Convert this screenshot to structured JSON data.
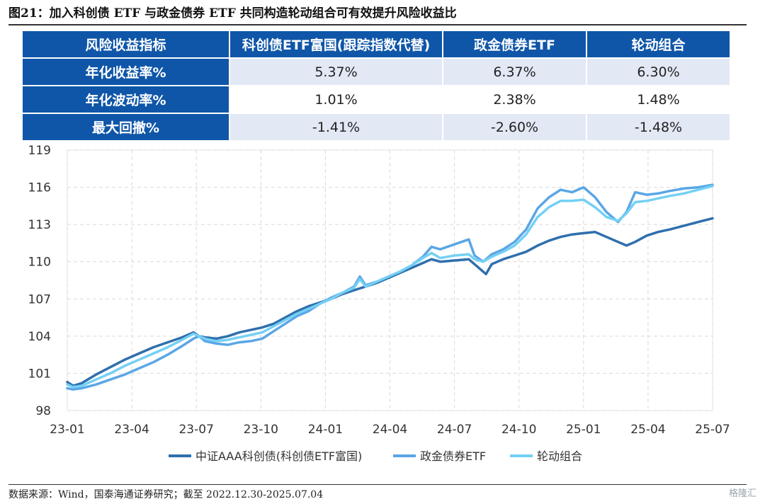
{
  "figure_title": "图21：加入科创债 ETF 与政金债券 ETF 共同构造轮动组合可有效提升风险收益比",
  "table": {
    "headers": [
      "风险收益指标",
      "科创债ETF富国(跟踪指数代替)",
      "政金债券ETF",
      "轮动组合"
    ],
    "rows": [
      {
        "label": "年化收益率%",
        "values": [
          "5.37%",
          "6.37%",
          "6.30%"
        ]
      },
      {
        "label": "年化波动率%",
        "values": [
          "1.01%",
          "2.38%",
          "1.48%"
        ]
      },
      {
        "label": "最大回撤%",
        "values": [
          "-1.41%",
          "-2.60%",
          "-1.48%"
        ]
      }
    ]
  },
  "chart_data": {
    "type": "line",
    "ylim": [
      98,
      119
    ],
    "yticks": [
      98,
      101,
      104,
      107,
      110,
      113,
      116,
      119
    ],
    "xticks": [
      "23-01",
      "23-04",
      "23-07",
      "23-10",
      "24-01",
      "24-04",
      "24-07",
      "24-10",
      "25-01",
      "25-04",
      "25-07"
    ],
    "grid": true,
    "legend_position": "bottom",
    "series": [
      {
        "name": "中证AAA科创债(科创债ETF富国)",
        "color": "#2e6fad",
        "points": [
          [
            0,
            100.3
          ],
          [
            0.2,
            100.0
          ],
          [
            0.5,
            100.2
          ],
          [
            1.0,
            100.9
          ],
          [
            1.5,
            101.5
          ],
          [
            2.0,
            102.1
          ],
          [
            2.5,
            102.6
          ],
          [
            3.0,
            103.1
          ],
          [
            3.5,
            103.5
          ],
          [
            4.0,
            103.9
          ],
          [
            4.4,
            104.3
          ],
          [
            4.6,
            104.0
          ],
          [
            4.8,
            103.9
          ],
          [
            5.2,
            103.8
          ],
          [
            5.6,
            104.0
          ],
          [
            6.0,
            104.3
          ],
          [
            6.4,
            104.5
          ],
          [
            6.8,
            104.7
          ],
          [
            7.2,
            105.0
          ],
          [
            7.6,
            105.5
          ],
          [
            8.0,
            106.0
          ],
          [
            8.4,
            106.4
          ],
          [
            8.8,
            106.7
          ],
          [
            9.2,
            107.0
          ],
          [
            9.6,
            107.4
          ],
          [
            10.0,
            107.7
          ],
          [
            10.4,
            108.0
          ],
          [
            10.8,
            108.3
          ],
          [
            11.2,
            108.7
          ],
          [
            11.6,
            109.1
          ],
          [
            12.0,
            109.5
          ],
          [
            12.4,
            109.9
          ],
          [
            12.7,
            110.2
          ],
          [
            13.0,
            110.0
          ],
          [
            13.5,
            110.1
          ],
          [
            14.0,
            110.2
          ],
          [
            14.4,
            109.4
          ],
          [
            14.6,
            109.0
          ],
          [
            14.8,
            109.8
          ],
          [
            15.2,
            110.2
          ],
          [
            15.6,
            110.5
          ],
          [
            16.0,
            110.8
          ],
          [
            16.4,
            111.3
          ],
          [
            16.8,
            111.7
          ],
          [
            17.2,
            112.0
          ],
          [
            17.6,
            112.2
          ],
          [
            18.0,
            112.3
          ],
          [
            18.4,
            112.4
          ],
          [
            18.8,
            112.0
          ],
          [
            19.2,
            111.6
          ],
          [
            19.5,
            111.3
          ],
          [
            19.8,
            111.6
          ],
          [
            20.2,
            112.1
          ],
          [
            20.6,
            112.4
          ],
          [
            21.0,
            112.6
          ],
          [
            21.5,
            112.9
          ],
          [
            22.0,
            113.2
          ],
          [
            22.5,
            113.5
          ]
        ]
      },
      {
        "name": "政金债券ETF",
        "color": "#5aa6e6",
        "points": [
          [
            0,
            99.8
          ],
          [
            0.2,
            99.7
          ],
          [
            0.5,
            99.8
          ],
          [
            1.0,
            100.1
          ],
          [
            1.5,
            100.5
          ],
          [
            2.0,
            100.9
          ],
          [
            2.5,
            101.4
          ],
          [
            3.0,
            101.9
          ],
          [
            3.5,
            102.5
          ],
          [
            4.0,
            103.2
          ],
          [
            4.4,
            103.8
          ],
          [
            4.6,
            104.0
          ],
          [
            4.8,
            103.6
          ],
          [
            5.2,
            103.4
          ],
          [
            5.6,
            103.3
          ],
          [
            6.0,
            103.5
          ],
          [
            6.4,
            103.6
          ],
          [
            6.8,
            103.8
          ],
          [
            7.2,
            104.4
          ],
          [
            7.6,
            105.0
          ],
          [
            8.0,
            105.6
          ],
          [
            8.4,
            106.0
          ],
          [
            8.8,
            106.6
          ],
          [
            9.2,
            107.1
          ],
          [
            9.6,
            107.5
          ],
          [
            10.0,
            108.0
          ],
          [
            10.2,
            108.8
          ],
          [
            10.4,
            108.1
          ],
          [
            10.8,
            108.4
          ],
          [
            11.2,
            108.8
          ],
          [
            11.6,
            109.2
          ],
          [
            12.0,
            109.7
          ],
          [
            12.4,
            110.4
          ],
          [
            12.7,
            111.2
          ],
          [
            13.0,
            111.0
          ],
          [
            13.5,
            111.4
          ],
          [
            14.0,
            111.8
          ],
          [
            14.2,
            110.5
          ],
          [
            14.5,
            110.0
          ],
          [
            14.8,
            110.6
          ],
          [
            15.2,
            111.0
          ],
          [
            15.6,
            111.6
          ],
          [
            16.0,
            112.6
          ],
          [
            16.4,
            114.3
          ],
          [
            16.8,
            115.2
          ],
          [
            17.2,
            115.8
          ],
          [
            17.6,
            115.6
          ],
          [
            18.0,
            116.0
          ],
          [
            18.4,
            115.2
          ],
          [
            18.8,
            114.0
          ],
          [
            19.2,
            113.2
          ],
          [
            19.5,
            114.0
          ],
          [
            19.8,
            115.6
          ],
          [
            20.2,
            115.4
          ],
          [
            20.6,
            115.5
          ],
          [
            21.0,
            115.7
          ],
          [
            21.5,
            115.9
          ],
          [
            22.0,
            116.0
          ],
          [
            22.5,
            116.2
          ]
        ]
      },
      {
        "name": "轮动组合",
        "color": "#74d0f4",
        "points": [
          [
            0,
            100.1
          ],
          [
            0.2,
            99.9
          ],
          [
            0.5,
            100.0
          ],
          [
            1.0,
            100.5
          ],
          [
            1.5,
            101.0
          ],
          [
            2.0,
            101.6
          ],
          [
            2.5,
            102.1
          ],
          [
            3.0,
            102.6
          ],
          [
            3.5,
            103.1
          ],
          [
            4.0,
            103.7
          ],
          [
            4.4,
            104.2
          ],
          [
            4.6,
            104.0
          ],
          [
            4.8,
            103.8
          ],
          [
            5.2,
            103.6
          ],
          [
            5.6,
            103.7
          ],
          [
            6.0,
            103.9
          ],
          [
            6.4,
            104.1
          ],
          [
            6.8,
            104.3
          ],
          [
            7.2,
            104.8
          ],
          [
            7.6,
            105.3
          ],
          [
            8.0,
            105.8
          ],
          [
            8.4,
            106.2
          ],
          [
            8.8,
            106.6
          ],
          [
            9.2,
            107.0
          ],
          [
            9.6,
            107.5
          ],
          [
            10.0,
            107.9
          ],
          [
            10.2,
            108.6
          ],
          [
            10.4,
            108.0
          ],
          [
            10.8,
            108.4
          ],
          [
            11.2,
            108.8
          ],
          [
            11.6,
            109.2
          ],
          [
            12.0,
            109.7
          ],
          [
            12.4,
            110.3
          ],
          [
            12.7,
            110.7
          ],
          [
            13.0,
            110.3
          ],
          [
            13.5,
            110.5
          ],
          [
            14.0,
            110.6
          ],
          [
            14.2,
            110.2
          ],
          [
            14.5,
            110.0
          ],
          [
            14.8,
            110.4
          ],
          [
            15.2,
            110.8
          ],
          [
            15.6,
            111.3
          ],
          [
            16.0,
            112.2
          ],
          [
            16.4,
            113.6
          ],
          [
            16.8,
            114.4
          ],
          [
            17.2,
            114.9
          ],
          [
            17.6,
            114.9
          ],
          [
            18.0,
            115.0
          ],
          [
            18.4,
            114.4
          ],
          [
            18.8,
            113.6
          ],
          [
            19.2,
            113.3
          ],
          [
            19.5,
            113.9
          ],
          [
            19.8,
            114.8
          ],
          [
            20.2,
            114.9
          ],
          [
            20.6,
            115.1
          ],
          [
            21.0,
            115.3
          ],
          [
            21.5,
            115.5
          ],
          [
            22.0,
            115.8
          ],
          [
            22.5,
            116.1
          ]
        ]
      }
    ]
  },
  "source_note": "数据来源：Wind，国泰海通证券研究；截至 2022.12.30-2025.07.04",
  "watermark": "格隆汇"
}
